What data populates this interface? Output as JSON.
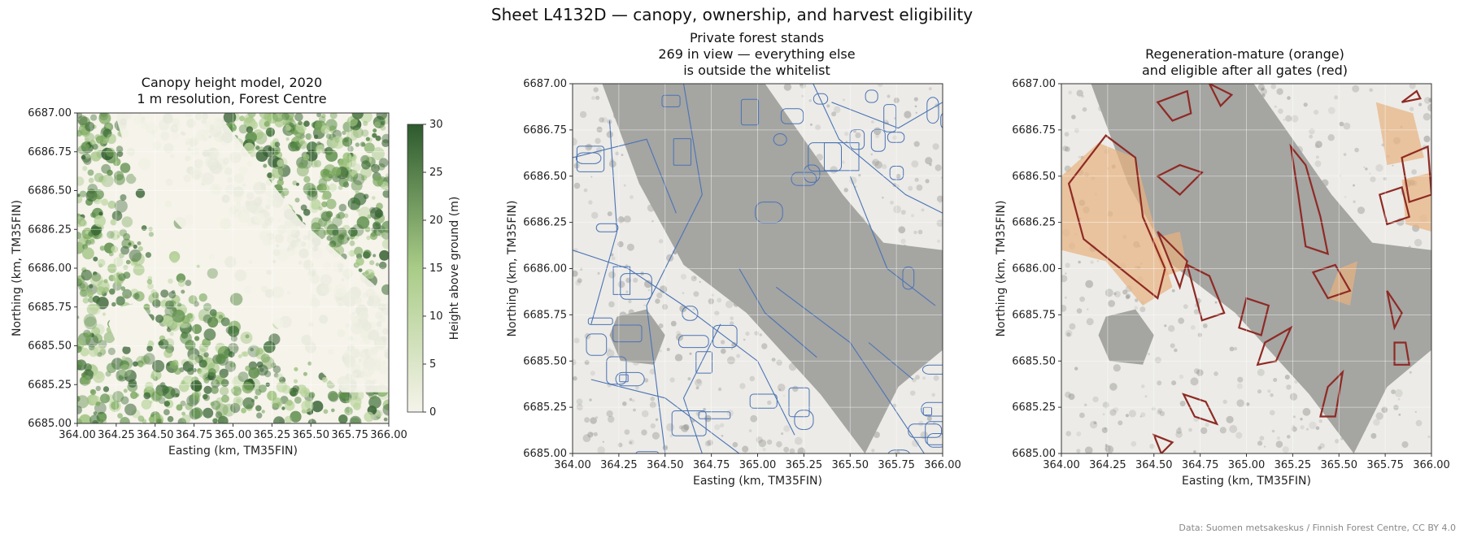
{
  "figure": {
    "title": "Sheet L4132D — canopy, ownership, and harvest eligibility",
    "credit": "Data: Suomen metsakeskus / Finnish Forest Centre, CC BY 4.0"
  },
  "axes": {
    "xlabel": "Easting (km, TM35FIN)",
    "ylabel": "Northing (km, TM35FIN)",
    "xlim": [
      364.0,
      366.0
    ],
    "ylim": [
      6685.0,
      6687.0
    ],
    "xticks": [
      "364.00",
      "364.25",
      "364.50",
      "364.75",
      "365.00",
      "365.25",
      "365.50",
      "365.75",
      "366.00"
    ],
    "yticks": [
      "6685.00",
      "6685.25",
      "6685.50",
      "6685.75",
      "6686.00",
      "6686.25",
      "6686.50",
      "6686.75",
      "6687.00"
    ]
  },
  "panels": [
    {
      "id": "canopy",
      "title_lines": [
        "Canopy height model, 2020",
        "1 m resolution, Forest Centre"
      ],
      "layer": "canopy height raster (green sequential colormap)"
    },
    {
      "id": "ownership",
      "title_lines": [
        "Private forest stands",
        "269 in view — everything else",
        "is outside the whitelist"
      ],
      "layer": "private stand boundaries (blue outlines)",
      "stand_count": 269
    },
    {
      "id": "eligibility",
      "title_lines": [
        "Regeneration-mature (orange)",
        "and eligible after all gates (red)"
      ],
      "layer": "regeneration-mature stands (orange fill), eligible stands (red outline)"
    }
  ],
  "colorbar": {
    "label": "Height above ground (m)",
    "ticks": [
      "0",
      "5",
      "10",
      "15",
      "20",
      "25",
      "30"
    ],
    "range": [
      0,
      30
    ],
    "colors": [
      "#f5f3ea",
      "#a9cc87",
      "#2d5a2e"
    ]
  },
  "colors": {
    "water": "#a5a5a2",
    "orthophoto": "#ecebe7",
    "stand_outline": "#4a73b5",
    "regeneration_mature": "#e8b27f",
    "eligible_outline": "#8e2a24"
  }
}
